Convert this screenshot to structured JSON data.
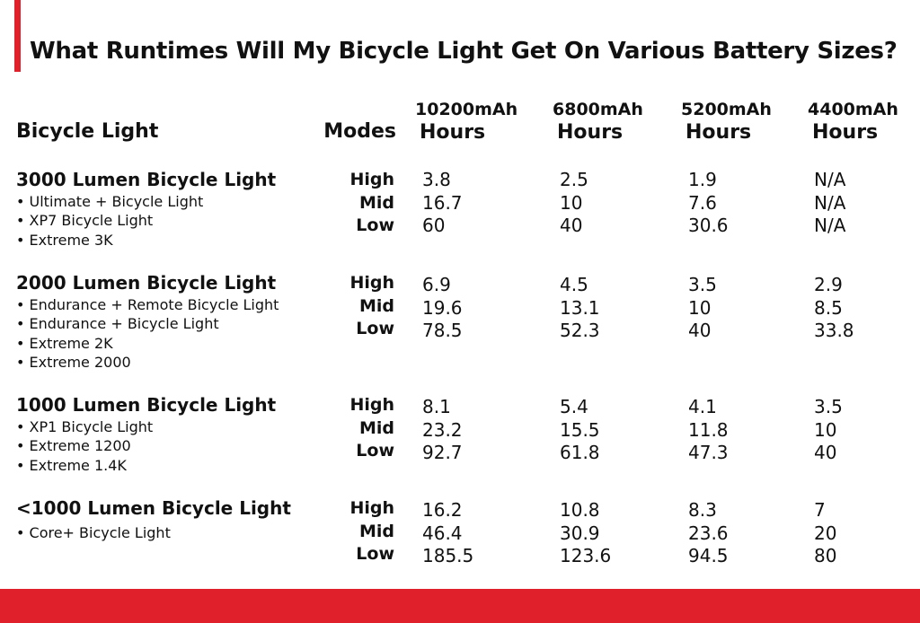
{
  "title": "What Runtimes Will My Bicycle Light Get On Various Battery Sizes?",
  "colors": {
    "accent": "#e0202a",
    "text": "#111111",
    "background": "#ffffff"
  },
  "header": {
    "light_col": "Bicycle Light",
    "modes_col": "Modes",
    "battery_cols": [
      {
        "capacity": "10200mAh",
        "unit": "Hours"
      },
      {
        "capacity": "6800mAh",
        "unit": "Hours"
      },
      {
        "capacity": "5200mAh",
        "unit": "Hours"
      },
      {
        "capacity": "4400mAh",
        "unit": "Hours"
      }
    ]
  },
  "groups": [
    {
      "title": "3000 Lumen Bicycle Light",
      "models": [
        "• Ultimate + Bicycle Light",
        "• XP7 Bicycle Light",
        "• Extreme 3K"
      ],
      "modes": [
        "High",
        "Mid",
        "Low"
      ],
      "runtimes": [
        [
          "3.8",
          "16.7",
          "60"
        ],
        [
          "2.5",
          "10",
          "40"
        ],
        [
          "1.9",
          "7.6",
          "30.6"
        ],
        [
          "N/A",
          "N/A",
          "N/A"
        ]
      ]
    },
    {
      "title": "2000 Lumen Bicycle Light",
      "models": [
        "• Endurance + Remote Bicycle Light",
        "• Endurance + Bicycle Light",
        "• Extreme 2K",
        "• Extreme 2000"
      ],
      "modes": [
        "High",
        "Mid",
        "Low"
      ],
      "runtimes": [
        [
          "6.9",
          "19.6",
          "78.5"
        ],
        [
          "4.5",
          "13.1",
          "52.3"
        ],
        [
          "3.5",
          "10",
          "40"
        ],
        [
          "2.9",
          "8.5",
          "33.8"
        ]
      ]
    },
    {
      "title": "1000 Lumen Bicycle Light",
      "models": [
        "• XP1 Bicycle Light",
        "• Extreme 1200",
        "• Extreme 1.4K"
      ],
      "modes": [
        "High",
        "Mid",
        "Low"
      ],
      "runtimes": [
        [
          "8.1",
          "23.2",
          "92.7"
        ],
        [
          "5.4",
          "15.5",
          "61.8"
        ],
        [
          "4.1",
          "11.8",
          "47.3"
        ],
        [
          "3.5",
          "10",
          "40"
        ]
      ]
    },
    {
      "title": "<1000 Lumen Bicycle Light",
      "models": [
        "• Core+ Bicycle Light"
      ],
      "modes": [
        "High",
        "Mid",
        "Low"
      ],
      "runtimes": [
        [
          "16.2",
          "46.4",
          "185.5"
        ],
        [
          "10.8",
          "30.9",
          "123.6"
        ],
        [
          "8.3",
          "23.6",
          "94.5"
        ],
        [
          "7",
          "20",
          "80"
        ]
      ]
    }
  ]
}
